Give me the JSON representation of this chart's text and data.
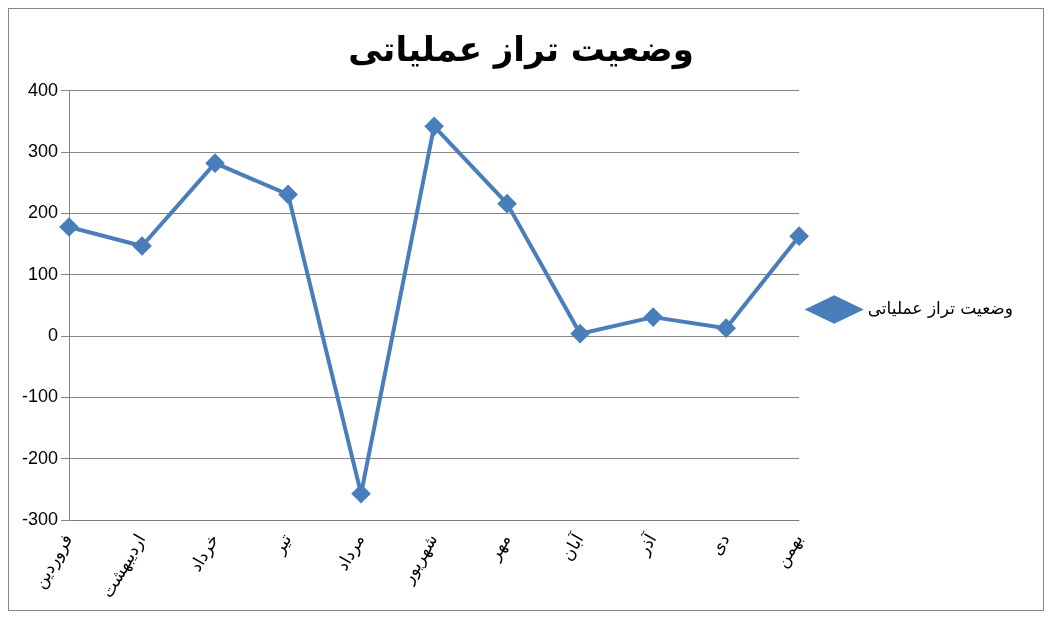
{
  "chart_data": {
    "type": "line",
    "title": "وضعیت تراز عملیاتی",
    "categories": [
      "فروردین",
      "اردیبهشت",
      "خرداد",
      "تیر",
      "مرداد",
      "شهریور",
      "مهر",
      "آبان",
      "آذر",
      "دی",
      "بهمن"
    ],
    "series": [
      {
        "name": "وضعیت تراز عملیاتی",
        "color": "#4a7ebb",
        "values": [
          178,
          147,
          282,
          231,
          -257,
          342,
          216,
          4,
          31,
          13,
          163
        ]
      }
    ],
    "ylim": [
      -300,
      400
    ],
    "yticks": [
      -300,
      -200,
      -100,
      0,
      100,
      200,
      300,
      400
    ],
    "grid": "y",
    "legend": "right",
    "marker": "diamond",
    "line_style": "solid"
  }
}
